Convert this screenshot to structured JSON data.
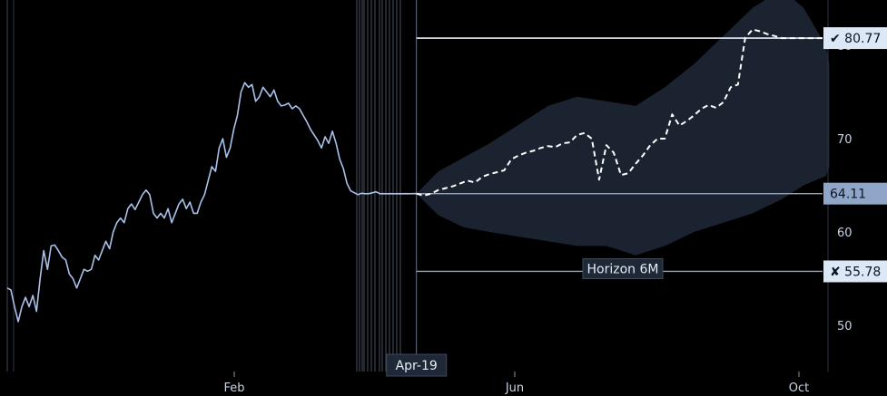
{
  "chart_data": {
    "type": "line",
    "title": "",
    "xlabel": "",
    "ylabel": "",
    "x_tick_labels": [
      "Feb",
      "Jun",
      "Oct"
    ],
    "y_ticks": [
      50,
      60,
      70,
      80
    ],
    "ylim": [
      44,
      83
    ],
    "grid": false,
    "markers": {
      "current_date": "Apr-19",
      "horizon_label": "Horizon 6M",
      "current_value": "64.11",
      "upper_target": "80.77",
      "lower_target": "55.78",
      "upper_symbol": "✔",
      "lower_symbol": "✘"
    },
    "series": [
      {
        "role": "history",
        "x": [
          0,
          2,
          4,
          6,
          8,
          10,
          12,
          14,
          16,
          18,
          20,
          22,
          24,
          26,
          28,
          30,
          32,
          34,
          36,
          38,
          40,
          42,
          44,
          46,
          48,
          50,
          52,
          54,
          56,
          58,
          60,
          62,
          64,
          66,
          68,
          70,
          72,
          74,
          76,
          78,
          80,
          82,
          84,
          86,
          88,
          90,
          92,
          94,
          96,
          98,
          100,
          102,
          104,
          106,
          108,
          110,
          112,
          114,
          116,
          118,
          120,
          122,
          124,
          126,
          128,
          130,
          132,
          134,
          136,
          138,
          140,
          142,
          144,
          146,
          148,
          150,
          152,
          154,
          156,
          158,
          160,
          162,
          164,
          166,
          168,
          170,
          172,
          174,
          176,
          178,
          180,
          182,
          184,
          186,
          188,
          190,
          192,
          194,
          196,
          198,
          200,
          202,
          204,
          206,
          208,
          210,
          212,
          214,
          216,
          218,
          220,
          222,
          224
        ],
        "values": [
          54,
          53.8,
          52,
          50.4,
          52,
          53,
          52,
          53.2,
          51.5,
          55,
          58,
          56,
          58.5,
          58.6,
          58,
          57.3,
          57,
          55.5,
          55,
          54,
          55,
          56,
          55.8,
          56,
          57.5,
          57,
          58,
          59,
          58.2,
          60,
          61,
          61.5,
          61,
          62.5,
          63,
          62.4,
          63.2,
          64,
          64.5,
          64,
          62,
          61.5,
          62,
          61.5,
          62.5,
          61,
          62,
          63,
          63.5,
          62.5,
          63.2,
          62,
          62,
          63.2,
          64,
          65.5,
          67,
          66.5,
          69,
          70,
          68,
          69,
          71,
          72.5,
          75,
          76,
          75.5,
          75.8,
          74,
          74.5,
          75.5,
          75,
          74.5,
          75.2,
          74,
          73.5,
          73.6,
          73.8,
          73.2,
          73.5,
          73.2,
          72.5,
          71.8,
          71,
          70.4,
          69.8,
          69,
          70.2,
          69.5,
          70.8,
          69.5,
          67.8,
          66.8,
          65.2,
          64.4,
          64.2,
          64.0,
          64.15,
          64.1,
          64.11,
          64.2,
          64.3,
          64.1,
          64.11,
          64.1,
          64.11,
          64.1,
          64.11,
          64.1,
          64.11,
          64.1,
          64.11,
          64.11
        ]
      },
      {
        "role": "projection",
        "x": [
          224,
          228,
          232,
          236,
          240,
          244,
          248,
          252,
          256,
          260,
          264,
          268,
          272,
          276,
          280,
          284,
          288,
          292,
          296,
          300,
          304,
          308,
          312,
          316,
          320,
          324,
          328,
          332,
          336,
          340,
          344,
          348,
          352,
          356,
          360,
          364,
          368,
          372,
          376,
          380,
          384,
          388,
          392,
          396,
          400,
          404,
          408,
          412,
          416,
          420,
          424,
          428,
          432,
          436,
          440,
          444,
          448,
          450
        ],
        "values": [
          64.11,
          63.9,
          64.1,
          64.5,
          64.7,
          64.9,
          65.2,
          65.5,
          65.3,
          65.9,
          66.2,
          66.4,
          66.6,
          67.8,
          68.2,
          68.5,
          68.7,
          69,
          69.2,
          69.1,
          69.5,
          69.6,
          70.4,
          70.6,
          70,
          65.6,
          69.3,
          68.5,
          66.1,
          66.3,
          67.3,
          68.2,
          69.3,
          70,
          70,
          72.6,
          71.4,
          71.9,
          72.5,
          73.2,
          73.6,
          73.3,
          73.9,
          75.5,
          75.8,
          80.8,
          81.7,
          81.5,
          81.2,
          81,
          80.77,
          80.77,
          80.77,
          80.77,
          80.77,
          80.77,
          80.77,
          80.77
        ]
      }
    ],
    "band": {
      "x": [
        224,
        236,
        250,
        264,
        280,
        296,
        312,
        328,
        344,
        360,
        376,
        392,
        408,
        424,
        436,
        448,
        450
      ],
      "upper": [
        64.11,
        66.5,
        68,
        69.5,
        71.5,
        73.5,
        74.5,
        74,
        73.5,
        75.5,
        78,
        81,
        84,
        86,
        84,
        80,
        78
      ],
      "lower": [
        64.11,
        61.8,
        60.5,
        60,
        59.5,
        59,
        58.5,
        58.5,
        57.5,
        58.5,
        60,
        61,
        62,
        63.5,
        65,
        66,
        67
      ]
    }
  }
}
